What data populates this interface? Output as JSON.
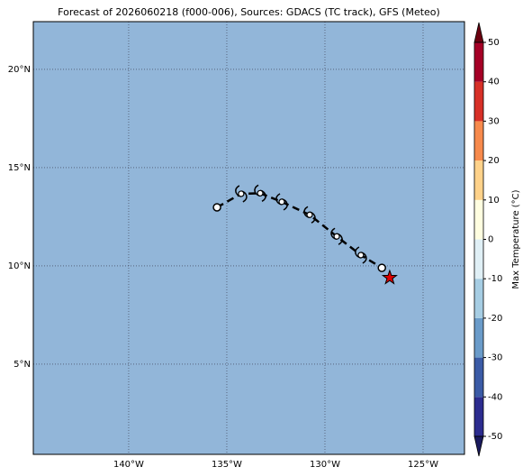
{
  "chart_data": {
    "type": "map",
    "title": "Forecast of 2026060218 (f000-006), Sources: GDACS (TC track), GFS (Meteo)",
    "background_color": "#92b6d9",
    "xlim": [
      -144.86,
      -122.89
    ],
    "ylim": [
      0.41,
      22.43
    ],
    "xticks": [
      {
        "value": -140,
        "label": "140°W"
      },
      {
        "value": -135,
        "label": "135°W"
      },
      {
        "value": -130,
        "label": "130°W"
      },
      {
        "value": -125,
        "label": "125°W"
      }
    ],
    "yticks": [
      {
        "value": 5,
        "label": "5°N"
      },
      {
        "value": 10,
        "label": "10°N"
      },
      {
        "value": 15,
        "label": "15°N"
      },
      {
        "value": 20,
        "label": "20°N"
      }
    ],
    "grid": true,
    "track": {
      "lon": [
        -135.5,
        -134.27,
        -133.3,
        -132.2,
        -130.78,
        -129.4,
        -128.17,
        -127.1
      ],
      "lat": [
        12.98,
        13.67,
        13.7,
        13.26,
        12.6,
        11.5,
        10.55,
        9.9
      ],
      "markers": [
        "circle",
        "storm",
        "storm",
        "storm",
        "storm",
        "storm",
        "storm",
        "circle"
      ]
    },
    "current_position": {
      "lon": -126.7,
      "lat": 9.4,
      "color": "#dd0000"
    },
    "colorbar": {
      "label": "Max Temperature (°C)",
      "lim": [
        -50,
        50
      ],
      "ticks": [
        -50,
        -40,
        -30,
        -20,
        -10,
        0,
        10,
        20,
        30,
        40,
        50
      ],
      "colors": [
        "#2c2c8f",
        "#3b5ba6",
        "#6a9bc9",
        "#a6cde3",
        "#e0f0f6",
        "#fffee0",
        "#fed28a",
        "#f78a4c",
        "#d73027",
        "#a50026"
      ],
      "under_color": "#1a1a5e",
      "over_color": "#6b0010"
    }
  }
}
